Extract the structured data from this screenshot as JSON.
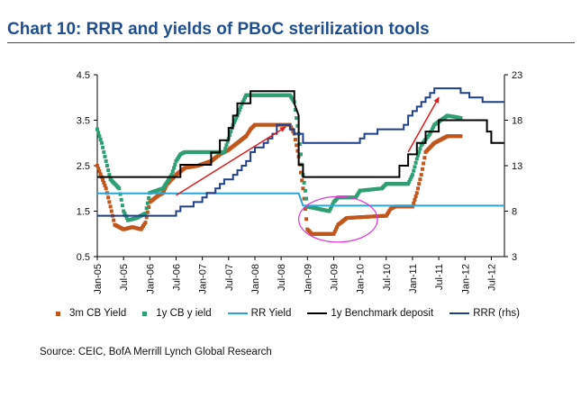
{
  "title": "Chart 10: RRR and yields of PBoC sterilization tools",
  "source": "Source: CEIC, BofA Merrill Lynch Global Research",
  "colors": {
    "title": "#1f4f8f",
    "cb3m": "#c0561c",
    "cb1y": "#2e9e73",
    "rr_yield": "#2aa7d9",
    "benchmark": "#000000",
    "rrr": "#1f3f8a",
    "arrow": "#e11b1b",
    "circle": "#e13bd6"
  },
  "legend": [
    {
      "label": "3m CB Yield",
      "key": "cb3m",
      "style": "dot"
    },
    {
      "label": "1y  CB y ield",
      "key": "cb1y",
      "style": "dot"
    },
    {
      "label": "RR Yield",
      "key": "rr_yield",
      "style": "line"
    },
    {
      "label": "1y Benchmark deposit",
      "key": "benchmark",
      "style": "line"
    },
    {
      "label": "RRR (rhs)",
      "key": "rrr",
      "style": "line"
    }
  ],
  "chart_data": {
    "type": "line",
    "x_ticks": [
      "Jan-05",
      "Jul-05",
      "Jan-06",
      "Jul-06",
      "Jan-07",
      "Jul-07",
      "Jan-08",
      "Jul-08",
      "Jan-09",
      "Jul-09",
      "Jan-10",
      "Jul-10",
      "Jan-11",
      "Jul-11",
      "Jan-12",
      "Jul-12"
    ],
    "x_range": [
      "2005-01",
      "2012-10"
    ],
    "y_left": {
      "min": 0.5,
      "max": 4.5,
      "ticks": [
        "0.5",
        "1.5",
        "2.5",
        "3.5",
        "4.5"
      ]
    },
    "y_right": {
      "min": 3,
      "max": 23,
      "ticks": [
        "3",
        "8",
        "13",
        "18",
        "23"
      ]
    },
    "series": [
      {
        "name": "3m CB Yield",
        "key": "cb3m",
        "style": "dot",
        "axis": "left",
        "points": [
          [
            "2005-01",
            2.5
          ],
          [
            "2005-03",
            2.0
          ],
          [
            "2005-04",
            1.6
          ],
          [
            "2005-05",
            1.2
          ],
          [
            "2005-07",
            1.1
          ],
          [
            "2005-09",
            1.15
          ],
          [
            "2005-11",
            1.1
          ],
          [
            "2005-12",
            1.25
          ],
          [
            "2006-01",
            1.7
          ],
          [
            "2006-03",
            1.85
          ],
          [
            "2006-04",
            1.9
          ],
          [
            "2006-05",
            2.1
          ],
          [
            "2006-07",
            2.3
          ],
          [
            "2006-09",
            2.45
          ],
          [
            "2006-12",
            2.5
          ],
          [
            "2007-03",
            2.6
          ],
          [
            "2007-05",
            2.75
          ],
          [
            "2007-07",
            2.85
          ],
          [
            "2007-09",
            3.0
          ],
          [
            "2007-11",
            3.15
          ],
          [
            "2007-12",
            3.3
          ],
          [
            "2008-01",
            3.4
          ],
          [
            "2008-09",
            3.4
          ],
          [
            "2008-10",
            3.2
          ],
          [
            "2008-11",
            2.7
          ],
          [
            "2008-12",
            2.0
          ],
          [
            "2009-01",
            1.1
          ],
          [
            "2009-02",
            1.0
          ],
          [
            "2009-07",
            1.0
          ],
          [
            "2009-08",
            1.2
          ],
          [
            "2009-10",
            1.35
          ],
          [
            "2010-07",
            1.4
          ],
          [
            "2010-08",
            1.55
          ],
          [
            "2010-09",
            1.6
          ],
          [
            "2011-01",
            1.6
          ],
          [
            "2011-02",
            1.9
          ],
          [
            "2011-03",
            2.3
          ],
          [
            "2011-04",
            2.8
          ],
          [
            "2011-06",
            3.0
          ],
          [
            "2011-09",
            3.15
          ],
          [
            "2011-12",
            3.15
          ]
        ]
      },
      {
        "name": "1y  CB y ield",
        "key": "cb1y",
        "style": "dot",
        "axis": "left",
        "points": [
          [
            "2005-01",
            3.3
          ],
          [
            "2005-02",
            3.0
          ],
          [
            "2005-03",
            2.6
          ],
          [
            "2005-04",
            2.2
          ],
          [
            "2005-06",
            2.0
          ],
          [
            "2005-07",
            1.5
          ],
          [
            "2005-08",
            1.3
          ],
          [
            "2005-10",
            1.35
          ],
          [
            "2005-12",
            1.45
          ],
          [
            "2006-01",
            1.9
          ],
          [
            "2006-04",
            2.0
          ],
          [
            "2006-06",
            2.3
          ],
          [
            "2006-07",
            2.6
          ],
          [
            "2006-08",
            2.75
          ],
          [
            "2006-09",
            2.8
          ],
          [
            "2007-06",
            2.8
          ],
          [
            "2007-07",
            3.1
          ],
          [
            "2007-08",
            3.4
          ],
          [
            "2007-09",
            3.6
          ],
          [
            "2007-10",
            3.85
          ],
          [
            "2007-11",
            4.05
          ],
          [
            "2008-09",
            4.05
          ],
          [
            "2008-10",
            3.9
          ],
          [
            "2008-11",
            3.2
          ],
          [
            "2008-12",
            2.3
          ],
          [
            "2009-01",
            1.6
          ],
          [
            "2009-06",
            1.5
          ],
          [
            "2009-07",
            1.7
          ],
          [
            "2009-08",
            1.8
          ],
          [
            "2009-12",
            1.8
          ],
          [
            "2010-01",
            1.95
          ],
          [
            "2010-06",
            2.0
          ],
          [
            "2010-07",
            2.1
          ],
          [
            "2010-12",
            2.1
          ],
          [
            "2011-01",
            2.3
          ],
          [
            "2011-02",
            2.65
          ],
          [
            "2011-03",
            2.95
          ],
          [
            "2011-05",
            3.2
          ],
          [
            "2011-06",
            3.4
          ],
          [
            "2011-09",
            3.6
          ],
          [
            "2011-12",
            3.55
          ]
        ]
      },
      {
        "name": "RR Yield",
        "key": "rr_yield",
        "style": "line",
        "axis": "left",
        "points": [
          [
            "2005-01",
            1.89
          ],
          [
            "2008-11",
            1.89
          ],
          [
            "2008-12",
            1.62
          ],
          [
            "2012-10",
            1.62
          ]
        ]
      },
      {
        "name": "1y Benchmark deposit",
        "key": "benchmark",
        "style": "line",
        "axis": "left",
        "points": [
          [
            "2005-01",
            2.25
          ],
          [
            "2006-08",
            2.25
          ],
          [
            "2006-08",
            2.52
          ],
          [
            "2007-03",
            2.52
          ],
          [
            "2007-03",
            2.79
          ],
          [
            "2007-05",
            2.79
          ],
          [
            "2007-05",
            3.06
          ],
          [
            "2007-07",
            3.06
          ],
          [
            "2007-07",
            3.33
          ],
          [
            "2007-08",
            3.33
          ],
          [
            "2007-08",
            3.6
          ],
          [
            "2007-09",
            3.6
          ],
          [
            "2007-09",
            3.87
          ],
          [
            "2007-12",
            3.87
          ],
          [
            "2007-12",
            4.14
          ],
          [
            "2008-10",
            4.14
          ],
          [
            "2008-10",
            3.87
          ],
          [
            "2008-11",
            3.6
          ],
          [
            "2008-11",
            2.52
          ],
          [
            "2008-12",
            2.52
          ],
          [
            "2008-12",
            2.25
          ],
          [
            "2010-10",
            2.25
          ],
          [
            "2010-10",
            2.5
          ],
          [
            "2010-12",
            2.5
          ],
          [
            "2010-12",
            2.75
          ],
          [
            "2011-02",
            2.75
          ],
          [
            "2011-02",
            3.0
          ],
          [
            "2011-04",
            3.0
          ],
          [
            "2011-04",
            3.25
          ],
          [
            "2011-07",
            3.25
          ],
          [
            "2011-07",
            3.5
          ],
          [
            "2012-06",
            3.5
          ],
          [
            "2012-06",
            3.25
          ],
          [
            "2012-07",
            3.25
          ],
          [
            "2012-07",
            3.0
          ],
          [
            "2012-10",
            3.0
          ]
        ]
      },
      {
        "name": "RRR (rhs)",
        "key": "rrr",
        "style": "line",
        "axis": "right",
        "points": [
          [
            "2005-01",
            7.5
          ],
          [
            "2006-07",
            7.5
          ],
          [
            "2006-07",
            8.0
          ],
          [
            "2006-08",
            8.0
          ],
          [
            "2006-08",
            8.5
          ],
          [
            "2006-11",
            8.5
          ],
          [
            "2006-11",
            9.0
          ],
          [
            "2007-01",
            9.0
          ],
          [
            "2007-01",
            9.5
          ],
          [
            "2007-02",
            9.5
          ],
          [
            "2007-02",
            10.0
          ],
          [
            "2007-04",
            10.0
          ],
          [
            "2007-04",
            10.5
          ],
          [
            "2007-05",
            10.5
          ],
          [
            "2007-05",
            11.0
          ],
          [
            "2007-06",
            11.0
          ],
          [
            "2007-06",
            11.5
          ],
          [
            "2007-08",
            11.5
          ],
          [
            "2007-08",
            12.0
          ],
          [
            "2007-09",
            12.0
          ],
          [
            "2007-09",
            12.5
          ],
          [
            "2007-10",
            12.5
          ],
          [
            "2007-10",
            13.0
          ],
          [
            "2007-11",
            13.0
          ],
          [
            "2007-11",
            13.5
          ],
          [
            "2007-12",
            13.5
          ],
          [
            "2007-12",
            14.5
          ],
          [
            "2008-01",
            14.5
          ],
          [
            "2008-01",
            15.0
          ],
          [
            "2008-03",
            15.0
          ],
          [
            "2008-03",
            15.5
          ],
          [
            "2008-04",
            15.5
          ],
          [
            "2008-04",
            16.0
          ],
          [
            "2008-05",
            16.0
          ],
          [
            "2008-05",
            16.5
          ],
          [
            "2008-06",
            16.5
          ],
          [
            "2008-06",
            17.5
          ],
          [
            "2008-09",
            17.5
          ],
          [
            "2008-09",
            17.0
          ],
          [
            "2008-10",
            17.0
          ],
          [
            "2008-10",
            16.5
          ],
          [
            "2008-12",
            16.5
          ],
          [
            "2008-12",
            15.5
          ],
          [
            "2010-01",
            15.5
          ],
          [
            "2010-01",
            16.0
          ],
          [
            "2010-02",
            16.0
          ],
          [
            "2010-02",
            16.5
          ],
          [
            "2010-05",
            16.5
          ],
          [
            "2010-05",
            17.0
          ],
          [
            "2010-11",
            17.0
          ],
          [
            "2010-11",
            17.5
          ],
          [
            "2010-12",
            17.5
          ],
          [
            "2010-12",
            18.5
          ],
          [
            "2011-01",
            18.5
          ],
          [
            "2011-01",
            19.0
          ],
          [
            "2011-02",
            19.0
          ],
          [
            "2011-02",
            19.5
          ],
          [
            "2011-03",
            19.5
          ],
          [
            "2011-03",
            20.0
          ],
          [
            "2011-04",
            20.0
          ],
          [
            "2011-04",
            20.5
          ],
          [
            "2011-05",
            20.5
          ],
          [
            "2011-05",
            21.0
          ],
          [
            "2011-06",
            21.0
          ],
          [
            "2011-06",
            21.5
          ],
          [
            "2011-12",
            21.5
          ],
          [
            "2011-12",
            21.0
          ],
          [
            "2012-02",
            21.0
          ],
          [
            "2012-02",
            20.5
          ],
          [
            "2012-05",
            20.5
          ],
          [
            "2012-05",
            20.0
          ],
          [
            "2012-10",
            20.0
          ]
        ]
      }
    ],
    "annotations": [
      {
        "type": "arrow",
        "from": [
          "2006-07",
          1.85
        ],
        "to": [
          "2008-08",
          3.35
        ]
      },
      {
        "type": "arrow",
        "from": [
          "2010-12",
          2.8
        ],
        "to": [
          "2011-07",
          4.0
        ]
      },
      {
        "type": "ellipse",
        "center": [
          "2009-08",
          1.32
        ],
        "rx_months": 9,
        "ry_value": 0.5
      }
    ]
  }
}
